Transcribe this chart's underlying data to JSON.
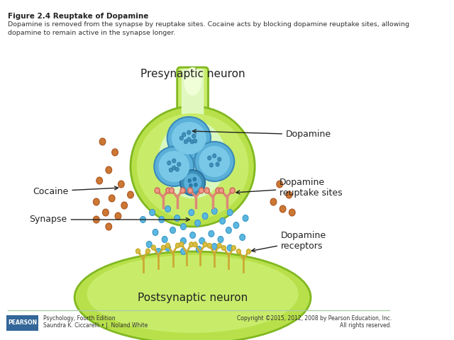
{
  "title_bold": "Figure 2.4 Reuptake of Dopamine",
  "title_text": "Dopamine is removed from the synapse by reuptake sites. Cocaine acts by blocking dopamine reuptake sites, allowing\ndopamine to remain active in the synapse longer.",
  "label_presynaptic": "Presynaptic neuron",
  "label_postsynaptic": "Postsynaptic neuron",
  "label_dopamine": "Dopamine",
  "label_cocaine": "Cocaine",
  "label_synapse": "Synapse",
  "label_reuptake": "Dopamine\nreuptake sites",
  "label_receptors": "Dopamine\nreceptors",
  "bg_color": "#ffffff",
  "neuron_fill_outer": "#b8e04a",
  "neuron_fill_inner": "#c8ec6a",
  "neuron_fill_light": "#e8f8b0",
  "post_fill": "#b8e04a",
  "vesicle_fill": "#4a9fcc",
  "vesicle_edge": "#2a7faa",
  "small_dopamine_color": "#5ab0dd",
  "cocaine_color": "#cc7733",
  "reuptake_site_color": "#dd8877",
  "receptor_color": "#ccaa33",
  "footer_line_color": "#aaccaa",
  "pearson_bg": "#336699",
  "footer_left1": "Psychology, Fourth Edition",
  "footer_left2": "Saundra K. Ciccarelli • J. Noland White",
  "footer_right1": "Copyright ©2015, 2012, 2008 by Pearson Education, Inc.",
  "footer_right2": "All rights reserved."
}
